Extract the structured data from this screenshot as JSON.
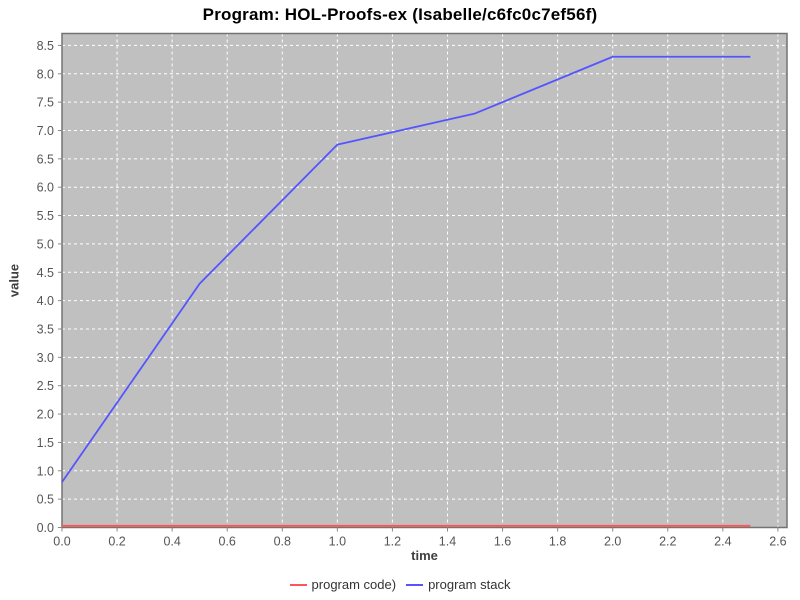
{
  "title": "Program: HOL-Proofs-ex (Isabelle/c6fc0c7ef56f)",
  "colors": {
    "plot_background": "#c0c0c0",
    "plot_border": "#737373",
    "gridline": "#ffffff",
    "tick_mark": "#888888",
    "tick_label": "#555555",
    "axis_label": "#3f3f3f",
    "title": "#000000",
    "series_code": "#ff5555",
    "series_stack": "#5555ff"
  },
  "legend": {
    "items": [
      {
        "label": "program code)",
        "color": "#ff5555"
      },
      {
        "label": "program stack",
        "color": "#5555ff"
      }
    ]
  },
  "chart_data": {
    "type": "line",
    "title": "Program: HOL-Proofs-ex (Isabelle/c6fc0c7ef56f)",
    "xlabel": "time",
    "ylabel": "value",
    "xlim": [
      0,
      2.633
    ],
    "ylim": [
      0,
      8.71
    ],
    "x_ticks": [
      "0.0",
      "0.2",
      "0.4",
      "0.6",
      "0.8",
      "1.0",
      "1.2",
      "1.4",
      "1.6",
      "1.8",
      "2.0",
      "2.2",
      "2.4",
      "2.6"
    ],
    "y_ticks": [
      "0.0",
      "0.5",
      "1.0",
      "1.5",
      "2.0",
      "2.5",
      "3.0",
      "3.5",
      "4.0",
      "4.5",
      "5.0",
      "5.5",
      "6.0",
      "6.5",
      "7.0",
      "7.5",
      "8.0",
      "8.5"
    ],
    "grid": true,
    "legend_position": "bottom",
    "series": [
      {
        "name": "program code)",
        "color": "#ff5555",
        "x": [
          0,
          0.5,
          1.0,
          1.5,
          2.0,
          2.5
        ],
        "y": [
          0.03,
          0.03,
          0.03,
          0.03,
          0.03,
          0.03
        ]
      },
      {
        "name": "program stack",
        "color": "#5555ff",
        "x": [
          0,
          0.5,
          1.0,
          1.5,
          2.0,
          2.5
        ],
        "y": [
          0.8,
          4.3,
          6.75,
          7.3,
          8.3,
          8.3
        ]
      }
    ]
  }
}
